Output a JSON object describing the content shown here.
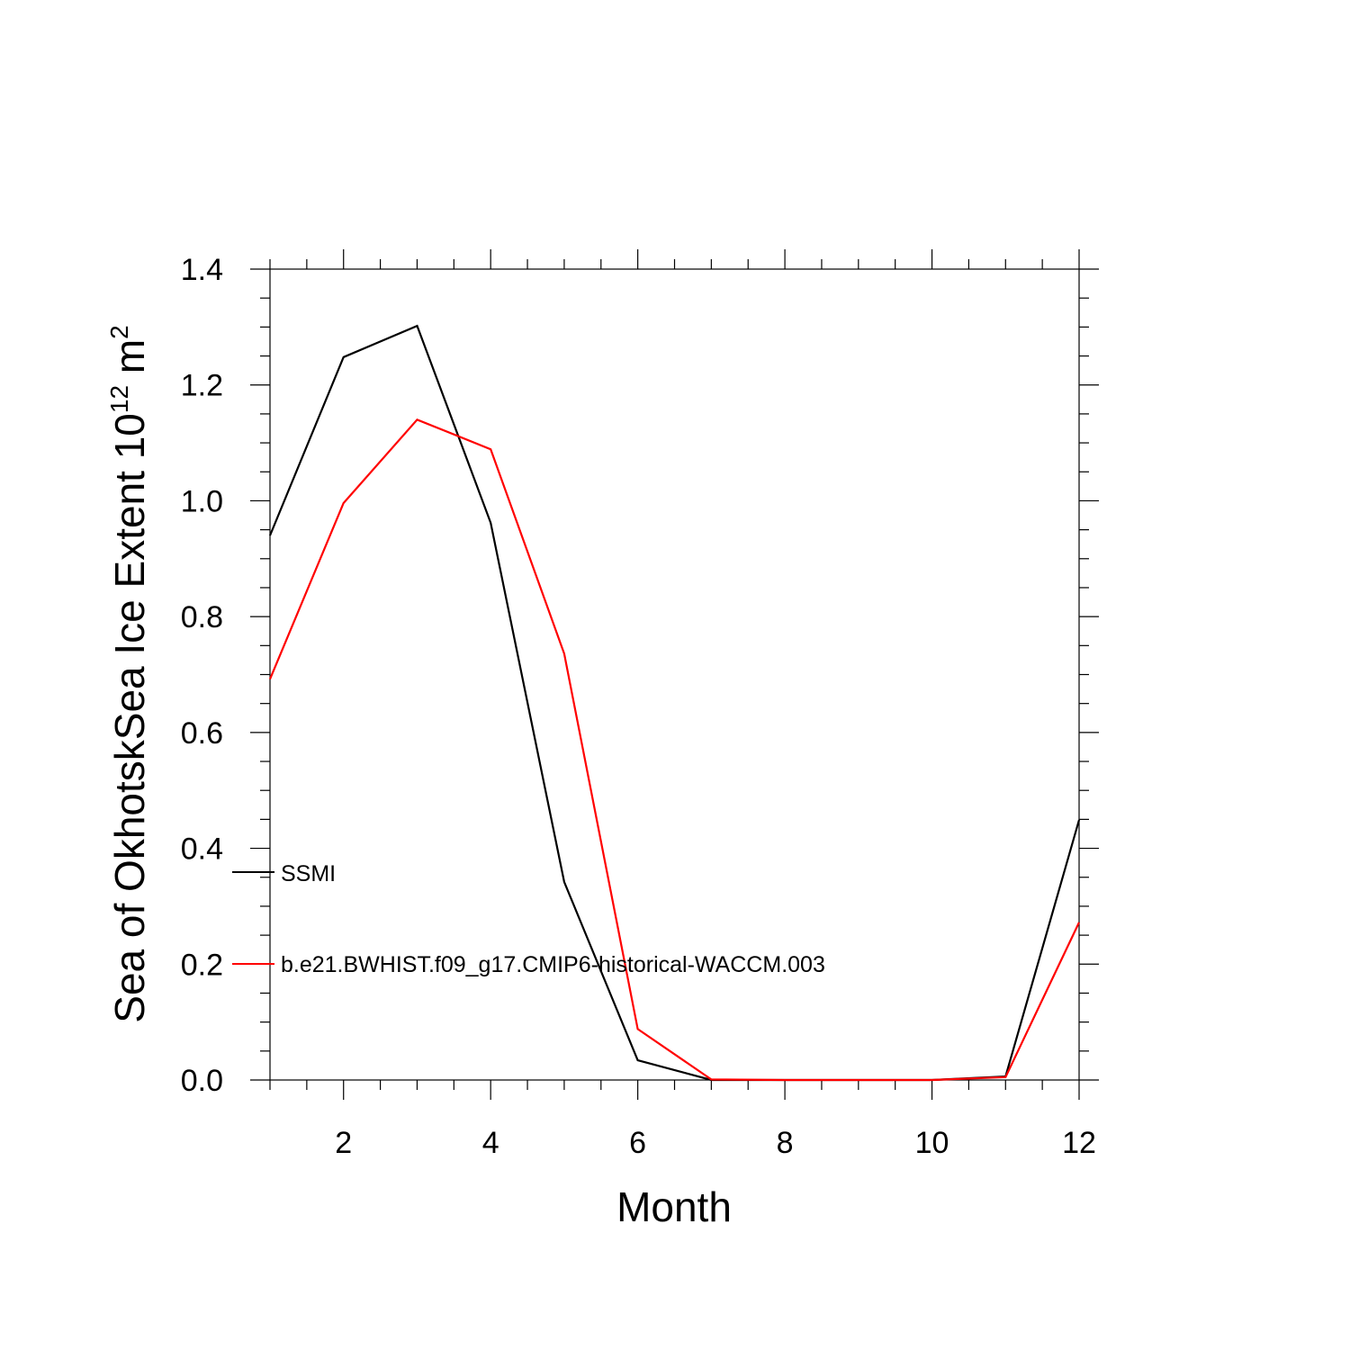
{
  "chart_data": {
    "type": "line",
    "xlabel": "Month",
    "ylabel": {
      "prefix": "Sea of OkhotskSea Ice Extent 10",
      "exponent": "12",
      "unit": " m",
      "unit_exponent": "2"
    },
    "xlim": [
      1,
      12
    ],
    "ylim": [
      0.0,
      1.4
    ],
    "x_ticks": [
      2,
      4,
      6,
      8,
      10,
      12
    ],
    "x_tick_labels": [
      "2",
      "4",
      "6",
      "8",
      "10",
      "12"
    ],
    "y_ticks": [
      0.0,
      0.2,
      0.4,
      0.6,
      0.8,
      1.0,
      1.2,
      1.4
    ],
    "y_tick_labels": [
      "0.0",
      "0.2",
      "0.4",
      "0.6",
      "0.8",
      "1.0",
      "1.2",
      "1.4"
    ],
    "grid": false,
    "legend_position": "left, inside plot",
    "x": [
      1,
      2,
      3,
      4,
      5,
      6,
      7,
      8,
      9,
      10,
      11,
      12
    ],
    "series": [
      {
        "name": "SSMI",
        "color": "#000000",
        "values": [
          0.94,
          1.248,
          1.302,
          0.962,
          0.342,
          0.034,
          0.0,
          0.0,
          0.0,
          0.0,
          0.006,
          0.449
        ]
      },
      {
        "name": "b.e21.BWHIST.f09_g17.CMIP6-historical-WACCM.003",
        "color": "#ff0000",
        "values": [
          0.692,
          0.996,
          1.14,
          1.089,
          0.736,
          0.088,
          0.001,
          0.0,
          0.0,
          0.0,
          0.005,
          0.272
        ]
      }
    ]
  }
}
